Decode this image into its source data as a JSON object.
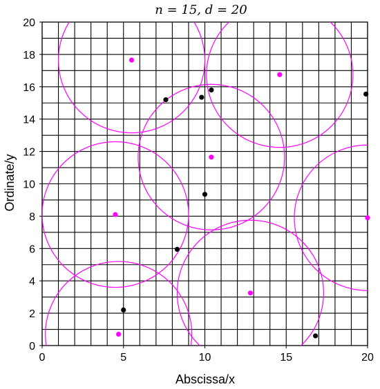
{
  "chart_data": {
    "type": "scatter",
    "title": "n = 15, d = 20",
    "xlabel": "Abscissa/x",
    "ylabel": "Ordinate/y",
    "xlim": [
      0,
      20
    ],
    "ylim": [
      0,
      20
    ],
    "x_ticks": [
      0,
      5,
      10,
      15,
      20
    ],
    "y_ticks": [
      0,
      2,
      4,
      6,
      8,
      10,
      12,
      14,
      16,
      18,
      20
    ],
    "grid": true,
    "grid_step": 1,
    "colors": {
      "black_points": "#000000",
      "magenta": "#ff00ff",
      "grid": "#000000"
    },
    "circle_radius": 4.5,
    "series": [
      {
        "color": "#000000",
        "points": [
          [
            7.6,
            15.2
          ],
          [
            9.8,
            15.35
          ],
          [
            10.4,
            15.8
          ],
          [
            19.9,
            15.55
          ],
          [
            10.0,
            9.35
          ],
          [
            8.3,
            5.95
          ],
          [
            5.0,
            2.2
          ],
          [
            16.8,
            0.6
          ]
        ]
      },
      {
        "color": "#ff00ff",
        "points": [
          [
            5.5,
            17.65
          ],
          [
            14.6,
            16.75
          ],
          [
            10.4,
            11.65
          ],
          [
            4.5,
            8.1
          ],
          [
            20.0,
            7.9
          ],
          [
            12.8,
            3.25
          ],
          [
            4.7,
            0.7
          ]
        ]
      }
    ],
    "circles": [
      [
        5.5,
        17.65
      ],
      [
        14.6,
        16.75
      ],
      [
        10.4,
        11.65
      ],
      [
        4.5,
        8.1
      ],
      [
        20.0,
        7.9
      ],
      [
        12.8,
        3.25
      ],
      [
        4.7,
        0.7
      ]
    ]
  }
}
